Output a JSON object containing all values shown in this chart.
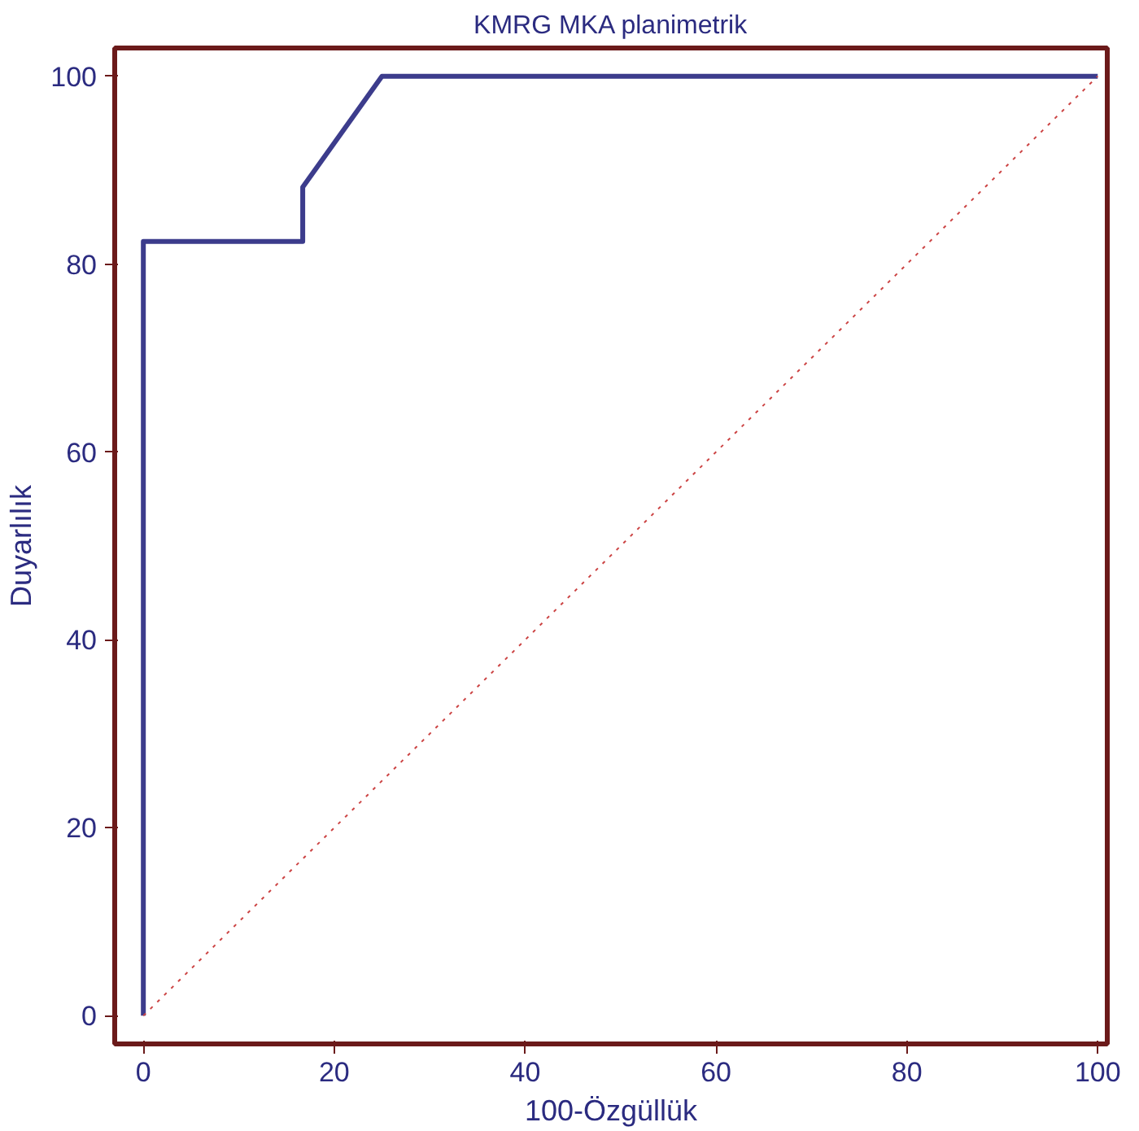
{
  "chart_data": {
    "type": "line",
    "title": "KMRG MKA planimetrik",
    "xlabel": "100-Özgüllük",
    "ylabel": "Duyarlılık",
    "xlim": [
      -3,
      101
    ],
    "ylim": [
      -3,
      103
    ],
    "xticks": [
      0,
      20,
      40,
      60,
      80,
      100
    ],
    "yticks": [
      0,
      20,
      40,
      60,
      80,
      100
    ],
    "grid": false,
    "series": [
      {
        "x": [
          0,
          0,
          16.7,
          16.7,
          25,
          100
        ],
        "values": [
          0,
          82.4,
          82.4,
          88.2,
          100,
          100
        ],
        "color": "#3c3c8c",
        "line_style": "solid"
      },
      {
        "x": [
          0,
          100
        ],
        "values": [
          0,
          100
        ],
        "color": "#cc4444",
        "line_style": "dotted"
      }
    ]
  }
}
